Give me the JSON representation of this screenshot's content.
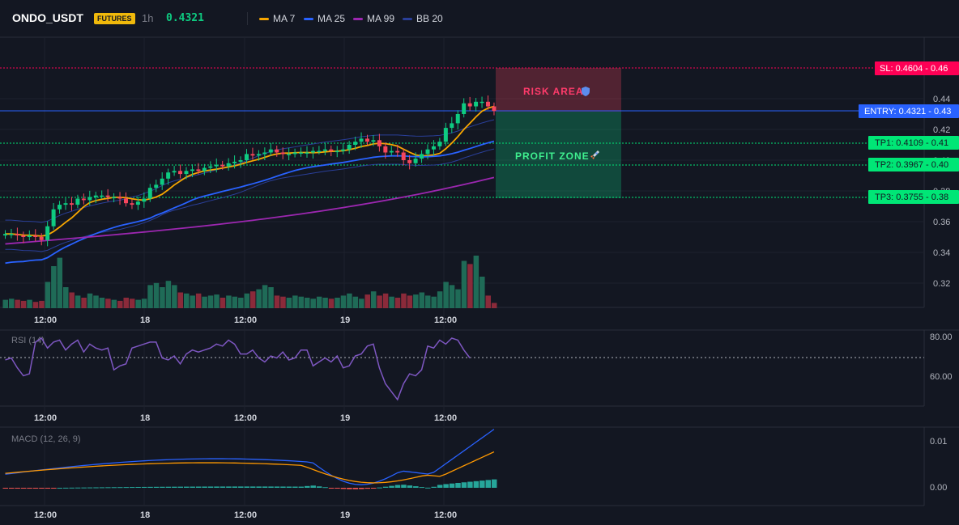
{
  "header": {
    "symbol": "ONDO_USDT",
    "badge": "FUTURES",
    "timeframe": "1h",
    "price": "0.4321",
    "legend": [
      {
        "label": "MA 7",
        "color": "#f7a600"
      },
      {
        "label": "MA 25",
        "color": "#2962ff"
      },
      {
        "label": "MA 99",
        "color": "#9c27b0"
      },
      {
        "label": "BB 20",
        "color": "#2a3f99"
      }
    ]
  },
  "colors": {
    "up": "#0ecb81",
    "down": "#f6465d",
    "sl": "#ff0055",
    "entry": "#2962ff",
    "tp": "#00e676"
  },
  "price_axis": {
    "ticks": [
      "0.44",
      "0.42",
      "0.40",
      "0.38",
      "0.36",
      "0.34",
      "0.32"
    ]
  },
  "time_axis": {
    "labels": [
      "12:00",
      "18",
      "12:00",
      "19",
      "12:00"
    ]
  },
  "levels": [
    {
      "name": "sl-level",
      "label": "SL: 0.4604",
      "price_label": "0.46",
      "value": 0.4604
    },
    {
      "name": "entry-level",
      "label": "ENTRY: 0.4321",
      "price_label": "0.43",
      "value": 0.4321
    },
    {
      "name": "tp1-level",
      "label": "TP1: 0.4109",
      "price_label": "0.41",
      "value": 0.4109
    },
    {
      "name": "tp2-level",
      "label": "TP2: 0.3967",
      "price_label": "0.40",
      "value": 0.3967
    },
    {
      "name": "tp3-level",
      "label": "TP3: 0.3755",
      "price_label": "0.38",
      "value": 0.3755
    }
  ],
  "zones": {
    "risk": "RISK AREA",
    "profit": "PROFIT ZONE"
  },
  "zone_icons": {
    "risk": "shield-icon",
    "profit": "rocket-icon"
  },
  "rsi": {
    "label": "RSI (14)",
    "ticks": [
      "80.00",
      "60.00"
    ],
    "threshold": 70
  },
  "macd": {
    "label": "MACD (12, 26, 9)",
    "ticks": [
      "0.01",
      "0.00"
    ]
  }
}
